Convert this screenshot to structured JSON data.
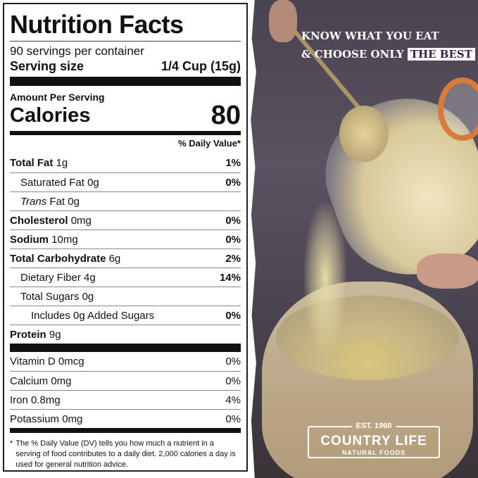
{
  "label": {
    "title": "Nutrition Facts",
    "servings": "90 servings per container",
    "serving_size_label": "Serving size",
    "serving_size_value": "1/4 Cup (15g)",
    "amount_per_serving": "Amount Per Serving",
    "calories_label": "Calories",
    "calories_value": "80",
    "dv_header": "% Daily Value*",
    "nutrients": [
      {
        "name": "Total Fat",
        "amount": "1g",
        "dv": "1%",
        "bold": true,
        "indent": 0
      },
      {
        "name": "Saturated Fat",
        "amount": "0g",
        "dv": "0%",
        "bold": false,
        "indent": 1
      },
      {
        "name": "Trans",
        "amount": "Fat 0g",
        "dv": "",
        "bold": false,
        "indent": 1
      },
      {
        "name": "Cholesterol",
        "amount": "0mg",
        "dv": "0%",
        "bold": true,
        "indent": 0
      },
      {
        "name": "Sodium",
        "amount": "10mg",
        "dv": "0%",
        "bold": true,
        "indent": 0
      },
      {
        "name": "Total Carbohydrate",
        "amount": "6g",
        "dv": "2%",
        "bold": true,
        "indent": 0
      },
      {
        "name": "Dietary Fiber",
        "amount": "4g",
        "dv": "14%",
        "bold": false,
        "indent": 1
      },
      {
        "name": "Total Sugars",
        "amount": "0g",
        "dv": "",
        "bold": false,
        "indent": 1
      },
      {
        "name": "Includes 0g Added Sugars",
        "amount": "",
        "dv": "0%",
        "bold": false,
        "indent": 2
      },
      {
        "name": "Protein",
        "amount": "9g",
        "dv": "",
        "bold": true,
        "indent": 0
      }
    ],
    "vitamins": [
      {
        "name": "Vitamin D 0mcg",
        "dv": "0%"
      },
      {
        "name": "Calcium 0mg",
        "dv": "0%"
      },
      {
        "name": "Iron 0.8mg",
        "dv": "4%"
      },
      {
        "name": "Potassium 0mg",
        "dv": "0%"
      }
    ],
    "footnote_mark": "*",
    "footnote": "The % Daily Value (DV) tells you how much a nutrient in a serving of food contributes to a daily diet. 2,000 calories a day is used for general nutrition advice."
  },
  "promo": {
    "line1": "KNOW WHAT YOU EAT",
    "line2": "& CHOOSE ONLY",
    "highlight": "THE BEST",
    "highlight_color": "#3d1e4a"
  },
  "logo": {
    "est": "EST. 1960",
    "name": "COUNTRY LIFE",
    "sub": "NATURAL FOODS"
  }
}
